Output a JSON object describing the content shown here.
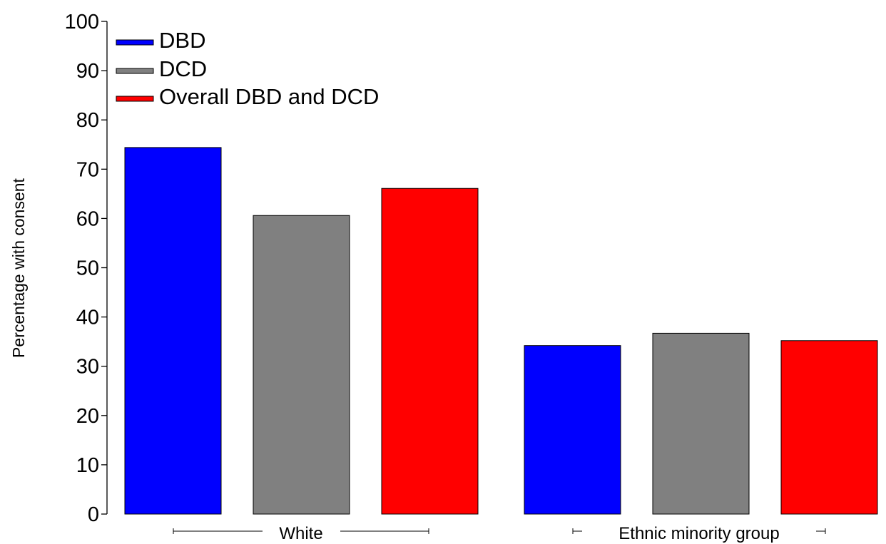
{
  "chart_data": {
    "type": "bar",
    "title": "",
    "xlabel": "",
    "ylabel": "Percentage with consent",
    "ylim": [
      0,
      100
    ],
    "yticks": [
      0,
      10,
      20,
      30,
      40,
      50,
      60,
      70,
      80,
      90,
      100
    ],
    "grid": false,
    "legend_position": "top-left",
    "categories": [
      "White",
      "Ethnic minority group"
    ],
    "series": [
      {
        "name": "DBD",
        "color": "#0000ff",
        "values": [
          74.4,
          34.2
        ]
      },
      {
        "name": "DCD",
        "color": "#808080",
        "values": [
          60.6,
          36.7
        ]
      },
      {
        "name": "Overall DBD and DCD",
        "color": "#ff0000",
        "values": [
          66.1,
          35.2
        ]
      }
    ]
  }
}
